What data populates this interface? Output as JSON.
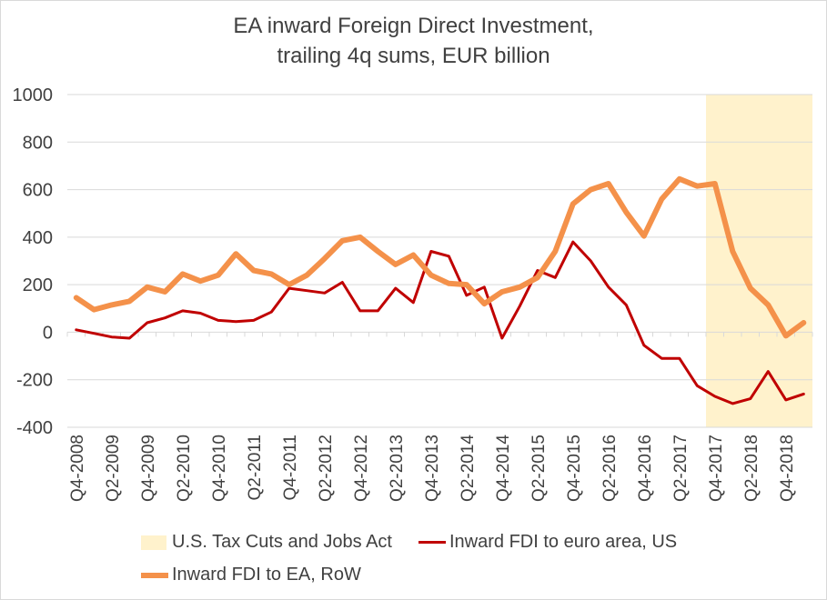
{
  "chart_data": {
    "type": "line",
    "title_lines": [
      "EA inward Foreign Direct Investment,",
      "trailing 4q sums, EUR billion"
    ],
    "ylim": [
      -400,
      1000
    ],
    "yticks": [
      "1000",
      "800",
      "600",
      "400",
      "200",
      "0",
      "-200",
      "-400"
    ],
    "grid": "horizontal",
    "legend_position": "bottom",
    "x": [
      "Q4-2008",
      "Q1-2009",
      "Q2-2009",
      "Q3-2009",
      "Q4-2009",
      "Q1-2010",
      "Q2-2010",
      "Q3-2010",
      "Q4-2010",
      "Q1-2011",
      "Q2-2011",
      "Q3-2011",
      "Q4-2011",
      "Q1-2012",
      "Q2-2012",
      "Q3-2012",
      "Q4-2012",
      "Q1-2013",
      "Q2-2013",
      "Q3-2013",
      "Q4-2013",
      "Q1-2014",
      "Q2-2014",
      "Q3-2014",
      "Q4-2014",
      "Q1-2015",
      "Q2-2015",
      "Q3-2015",
      "Q4-2015",
      "Q1-2016",
      "Q2-2016",
      "Q3-2016",
      "Q4-2016",
      "Q1-2017",
      "Q2-2017",
      "Q3-2017",
      "Q4-2017",
      "Q1-2018",
      "Q2-2018",
      "Q3-2018",
      "Q4-2018",
      "Q1-2019"
    ],
    "x_tick_labels": [
      "Q4-2008",
      "Q2-2009",
      "Q4-2009",
      "Q2-2010",
      "Q4-2010",
      "Q2-2011",
      "Q4-2011",
      "Q2-2012",
      "Q4-2012",
      "Q2-2013",
      "Q4-2013",
      "Q2-2014",
      "Q4-2014",
      "Q2-2015",
      "Q4-2015",
      "Q2-2016",
      "Q4-2016",
      "Q2-2017",
      "Q4-2017",
      "Q2-2018",
      "Q4-2018"
    ],
    "shaded_region": {
      "name": "U.S. Tax Cuts and Jobs Act",
      "from": "Q4-2017",
      "to": "end",
      "color": "#fff2cc"
    },
    "series": [
      {
        "name": "Inward FDI to euro area, US",
        "color": "#c00000",
        "width": 3,
        "values": [
          10,
          -5,
          -20,
          -25,
          40,
          60,
          90,
          80,
          50,
          45,
          50,
          85,
          185,
          175,
          165,
          210,
          90,
          90,
          185,
          125,
          340,
          320,
          155,
          190,
          -25,
          110,
          260,
          230,
          380,
          300,
          190,
          115,
          -55,
          -110,
          -110,
          -225,
          -270,
          -300,
          -280,
          -165,
          -285,
          -260
        ]
      },
      {
        "name": "Inward FDI to EA, RoW",
        "color": "#f4914a",
        "width": 6,
        "values": [
          145,
          95,
          115,
          130,
          190,
          170,
          245,
          215,
          240,
          330,
          260,
          245,
          200,
          240,
          310,
          385,
          400,
          340,
          285,
          325,
          240,
          205,
          200,
          120,
          170,
          190,
          230,
          340,
          540,
          600,
          625,
          505,
          405,
          560,
          645,
          615,
          625,
          340,
          185,
          115,
          -15,
          40
        ]
      }
    ]
  }
}
